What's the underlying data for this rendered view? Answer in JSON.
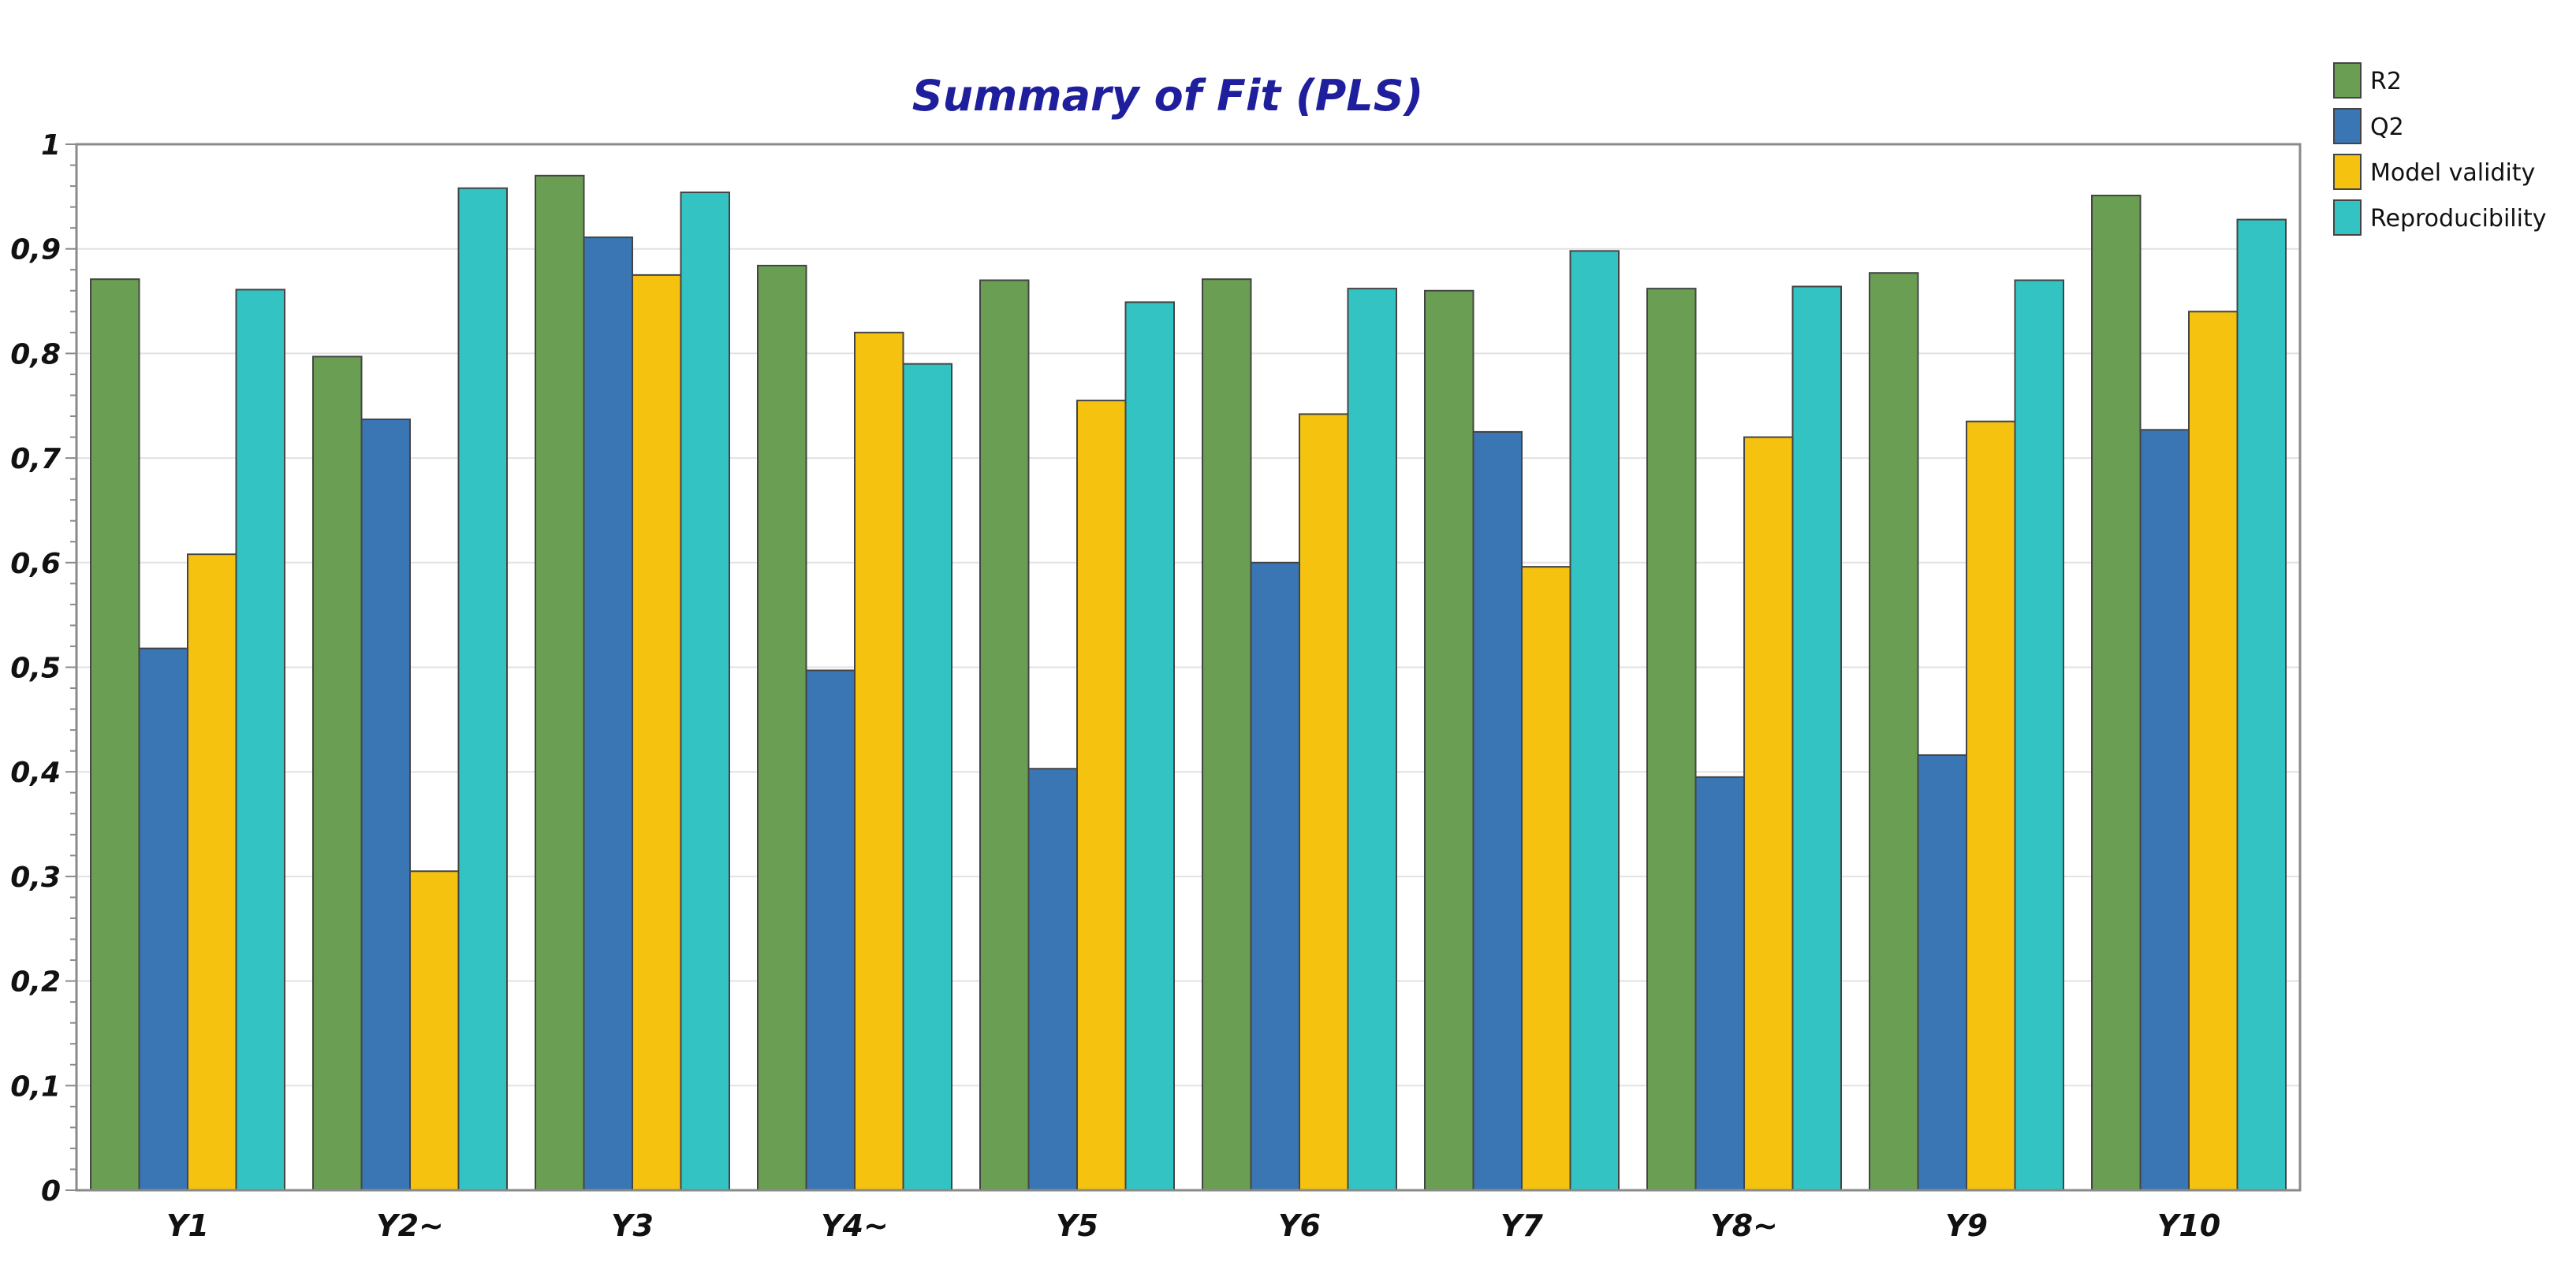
{
  "chart_data": {
    "type": "bar",
    "title": "Summary of Fit (PLS)",
    "xlabel": "",
    "ylabel": "",
    "ylim": [
      0,
      1
    ],
    "grid": true,
    "legend": "top-right",
    "categories": [
      "Y1",
      "Y2~",
      "Y3",
      "Y4~",
      "Y5",
      "Y6",
      "Y7",
      "Y8~",
      "Y9",
      "Y10"
    ],
    "y_tick_labels": [
      "0",
      "0,1",
      "0,2",
      "0,3",
      "0,4",
      "0,5",
      "0,6",
      "0,7",
      "0,8",
      "0,9",
      "1"
    ],
    "y_tick_values": [
      0,
      0.1,
      0.2,
      0.3,
      0.4,
      0.5,
      0.6,
      0.7,
      0.8,
      0.9,
      1
    ],
    "series": [
      {
        "name": "R2",
        "color": "#6a9e52",
        "values": [
          0.871,
          0.797,
          0.97,
          0.884,
          0.87,
          0.871,
          0.86,
          0.862,
          0.877,
          0.951
        ]
      },
      {
        "name": "Q2",
        "color": "#3a76b4",
        "values": [
          0.518,
          0.737,
          0.911,
          0.497,
          0.403,
          0.6,
          0.725,
          0.395,
          0.416,
          0.727
        ]
      },
      {
        "name": "Model validity",
        "color": "#f5c20f",
        "values": [
          0.608,
          0.305,
          0.875,
          0.82,
          0.755,
          0.742,
          0.596,
          0.72,
          0.735,
          0.84
        ]
      },
      {
        "name": "Reproducibility",
        "color": "#33c3c3",
        "values": [
          0.861,
          0.958,
          0.954,
          0.79,
          0.849,
          0.862,
          0.898,
          0.864,
          0.87,
          0.928
        ]
      }
    ],
    "colors": {
      "title": "#1f1f9e",
      "text": "#111111",
      "grid": "#e2e2e2",
      "frame": "#8a8a8a",
      "bar_edge": "#444444"
    }
  }
}
